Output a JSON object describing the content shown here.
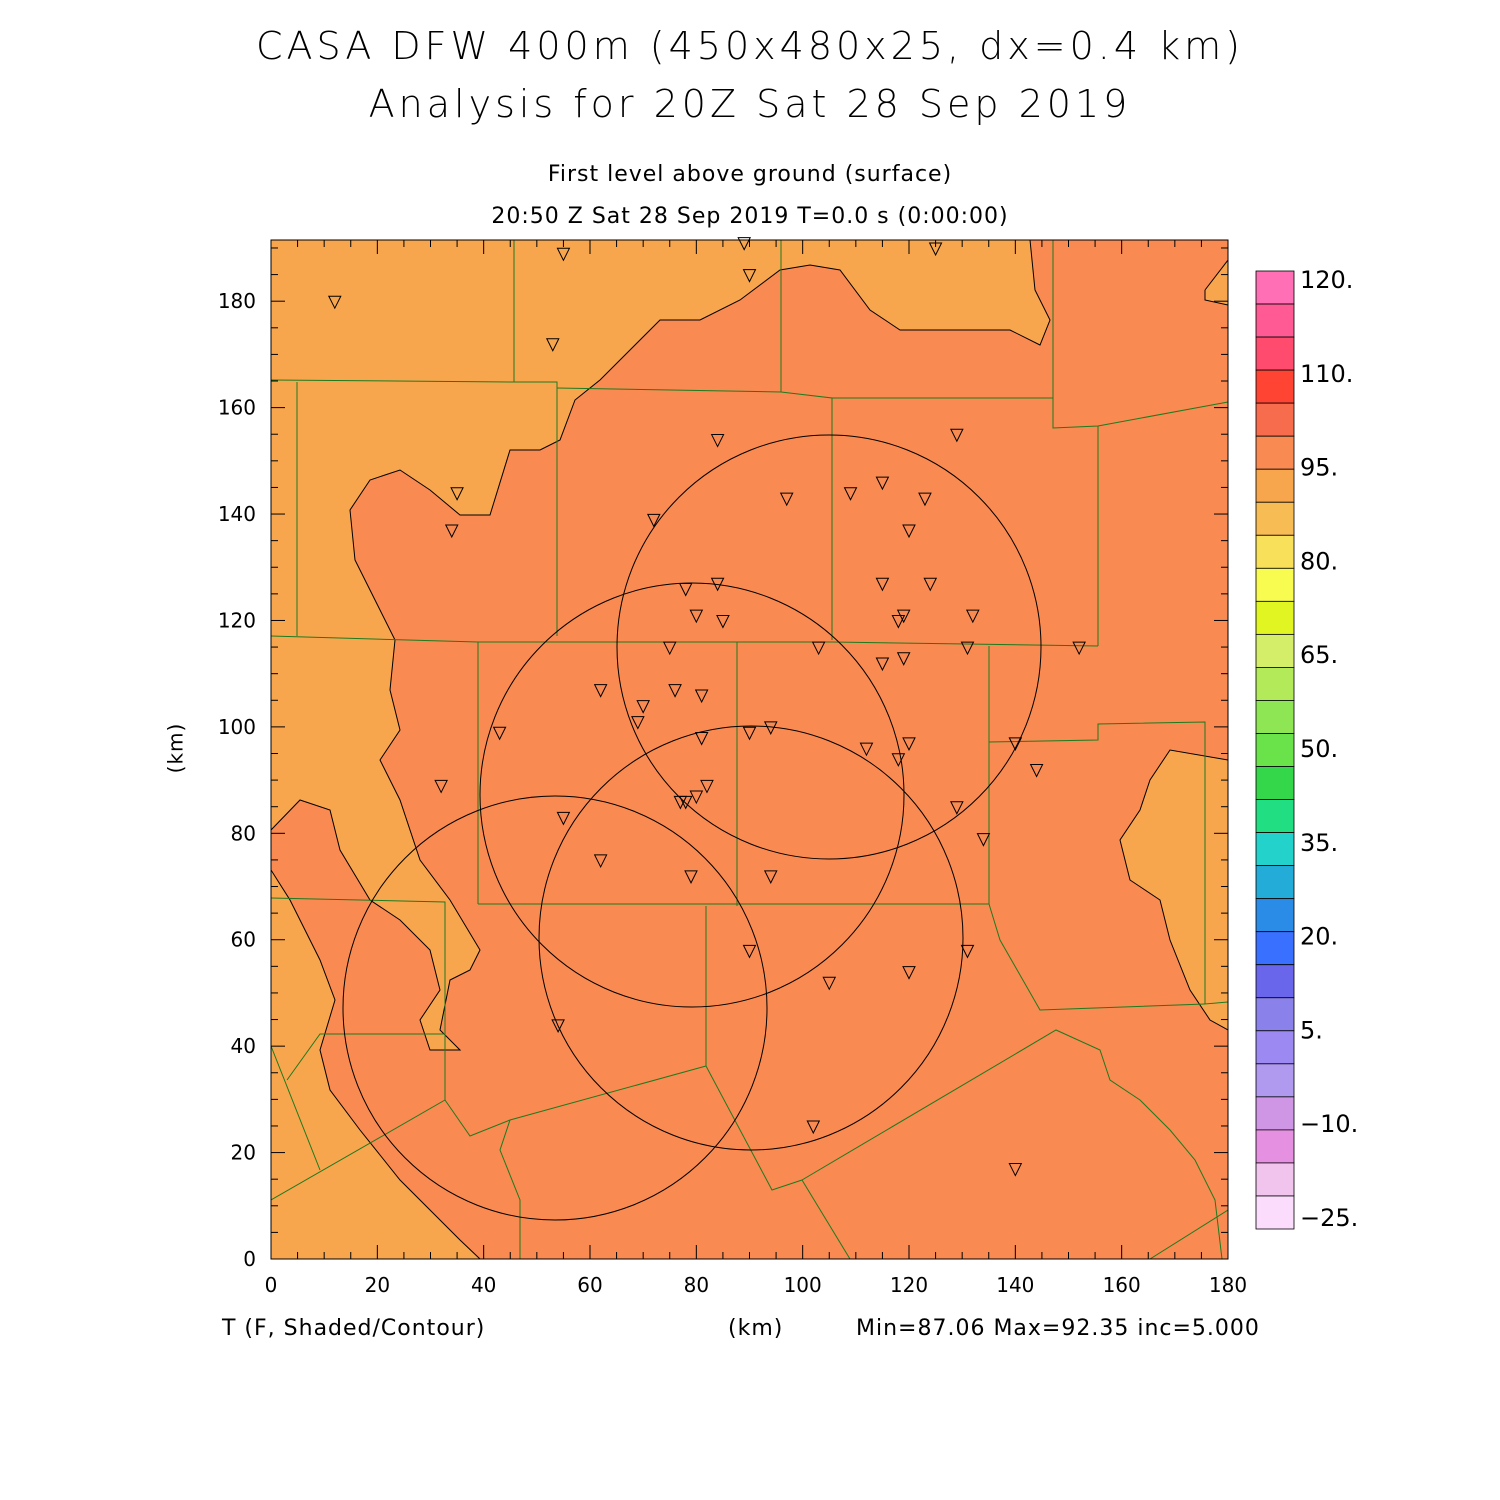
{
  "titles": {
    "main": "CASA DFW 400m (450x480x25, dx=0.4 km)",
    "analysis": "Analysis for 20Z Sat 28 Sep 2019",
    "level": "First level above ground (surface)",
    "time": "20:50 Z Sat 28 Sep 2019    T=0.0 s (0:00:00)"
  },
  "footer": {
    "variable": "T (F, Shaded/Contour)",
    "unit": "(km)",
    "stats": "Min=87.06 Max=92.35 inc=5.000"
  },
  "axes": {
    "ylabel": "(km)",
    "xticks": [
      "0",
      "20",
      "40",
      "60",
      "80",
      "100",
      "120",
      "140",
      "160",
      "180"
    ],
    "yticks": [
      "0",
      "20",
      "40",
      "60",
      "80",
      "100",
      "120",
      "140",
      "160",
      "180"
    ]
  },
  "colorbar": {
    "labels": [
      "120.",
      "110.",
      "95.",
      "80.",
      "65.",
      "50.",
      "35.",
      "20.",
      "5.",
      "−10.",
      "−25."
    ],
    "colors": [
      "#ff6fb5",
      "#ff5a93",
      "#ff4b6e",
      "#ff4433",
      "#f86c4e",
      "#f88a52",
      "#f8a64e",
      "#f8bc55",
      "#f8e05a",
      "#f8fb50",
      "#e0f522",
      "#d4ee6a",
      "#b2ea5a",
      "#8ee654",
      "#6ae24a",
      "#34d64a",
      "#22de82",
      "#24d2cc",
      "#24acd8",
      "#2a8ce6",
      "#3a70ff",
      "#6a66ec",
      "#8a82ea",
      "#9c8af2",
      "#b09af0",
      "#d096e6",
      "#e690e2",
      "#f0c4ec",
      "#fcdcfc"
    ]
  },
  "map_colors": {
    "warm": "#f88a52",
    "cool": "#f8a64e",
    "county_lines": "#1e7a1e"
  }
}
